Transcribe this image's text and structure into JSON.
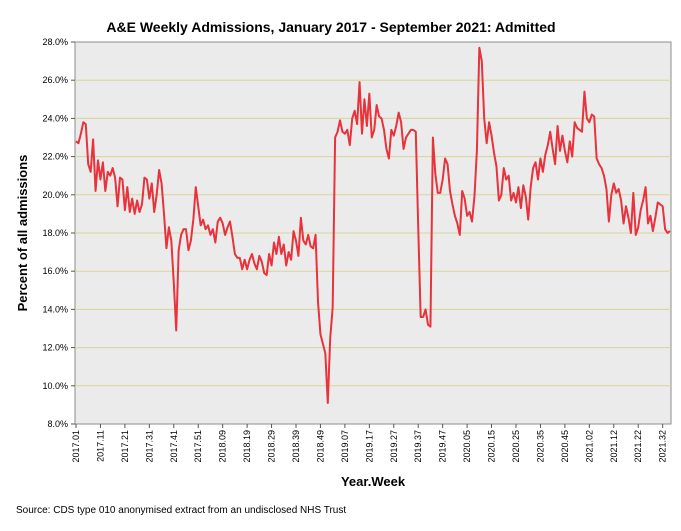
{
  "chart_data": {
    "type": "line",
    "title": "A&E Weekly Admissions, January 2017 - September 2021: Admitted",
    "xlabel": "Year.Week",
    "ylabel": "Percent of all admissions",
    "ylim": [
      8.0,
      28.0
    ],
    "y_ticks": [
      "8.0%",
      "10.0%",
      "12.0%",
      "14.0%",
      "16.0%",
      "18.0%",
      "20.0%",
      "22.0%",
      "24.0%",
      "26.0%",
      "28.0%"
    ],
    "x_ticks": [
      "2017.01",
      "2017.11",
      "2017.21",
      "2017.31",
      "2017.41",
      "2017.51",
      "2018.09",
      "2018.19",
      "2018.29",
      "2018.39",
      "2018.49",
      "2019.07",
      "2019.17",
      "2019.27",
      "2019.37",
      "2019.47",
      "2020.05",
      "2020.15",
      "2020.25",
      "2020.35",
      "2020.45",
      "2021.02",
      "2021.12",
      "2021.22",
      "2021.32"
    ],
    "grid": true,
    "series": [
      {
        "name": "Admitted",
        "color": "#e8323c",
        "values": [
          22.8,
          22.7,
          23.2,
          23.8,
          23.7,
          21.6,
          21.2,
          22.9,
          20.2,
          21.8,
          20.8,
          21.7,
          20.2,
          21.2,
          21.0,
          21.4,
          20.9,
          19.4,
          20.9,
          20.8,
          19.2,
          20.4,
          19.1,
          19.8,
          19.0,
          19.7,
          19.1,
          19.5,
          20.9,
          20.8,
          19.8,
          20.6,
          19.1,
          20.0,
          21.3,
          20.6,
          19.0,
          17.2,
          18.3,
          17.6,
          15.4,
          12.9,
          17.1,
          17.9,
          18.2,
          18.2,
          17.1,
          17.6,
          18.7,
          20.4,
          19.4,
          18.4,
          18.7,
          18.2,
          18.4,
          17.9,
          18.2,
          17.5,
          18.6,
          18.8,
          18.5,
          17.9,
          18.3,
          18.6,
          17.8,
          16.9,
          16.7,
          16.7,
          16.1,
          16.6,
          16.1,
          16.6,
          16.9,
          16.4,
          16.1,
          16.8,
          16.5,
          15.9,
          15.8,
          16.9,
          16.3,
          17.5,
          16.9,
          17.8,
          16.9,
          17.4,
          16.3,
          17.0,
          16.6,
          18.1,
          17.6,
          16.8,
          18.8,
          17.6,
          17.4,
          17.9,
          17.3,
          17.2,
          17.9,
          14.4,
          12.7,
          12.2,
          11.7,
          9.1,
          12.5,
          14.1,
          23.0,
          23.3,
          23.9,
          23.3,
          23.2,
          23.4,
          22.6,
          24.0,
          24.4,
          23.7,
          25.9,
          23.2,
          25.0,
          23.6,
          25.3,
          23.0,
          23.4,
          24.7,
          24.1,
          24.0,
          23.4,
          22.4,
          21.9,
          23.4,
          23.1,
          23.6,
          24.3,
          23.8,
          22.4,
          23.0,
          23.2,
          23.4,
          23.4,
          23.3,
          18.3,
          13.6,
          13.6,
          14.0,
          13.2,
          13.1,
          23.0,
          21.1,
          20.1,
          20.1,
          20.8,
          21.9,
          21.6,
          20.2,
          19.5,
          18.9,
          18.5,
          17.9,
          20.2,
          19.8,
          18.9,
          19.1,
          18.6,
          19.9,
          22.3,
          27.7,
          27.0,
          24.0,
          22.7,
          23.8,
          23.1,
          22.2,
          21.5,
          19.7,
          20.0,
          21.4,
          20.8,
          21.0,
          19.7,
          20.1,
          19.6,
          20.4,
          19.3,
          20.5,
          19.9,
          18.7,
          20.4,
          21.4,
          21.7,
          20.8,
          21.9,
          21.2,
          22.1,
          22.6,
          23.3,
          22.4,
          21.6,
          23.6,
          22.3,
          23.1,
          22.3,
          21.7,
          22.8,
          22.0,
          23.8,
          23.5,
          23.4,
          23.3,
          25.4,
          24.0,
          23.8,
          24.2,
          24.1,
          21.9,
          21.6,
          21.4,
          21.0,
          20.3,
          18.6,
          20.0,
          20.6,
          20.1,
          20.3,
          19.7,
          18.5,
          19.4,
          18.8,
          18.0,
          20.1,
          17.9,
          18.3,
          19.2,
          19.7,
          20.4,
          18.5,
          18.9,
          18.1,
          18.8,
          19.6,
          19.5,
          19.4,
          18.2,
          18.0,
          18.1
        ]
      }
    ]
  },
  "source_text": "Source: CDS type 010 anonymised extract from an undisclosed NHS Trust"
}
